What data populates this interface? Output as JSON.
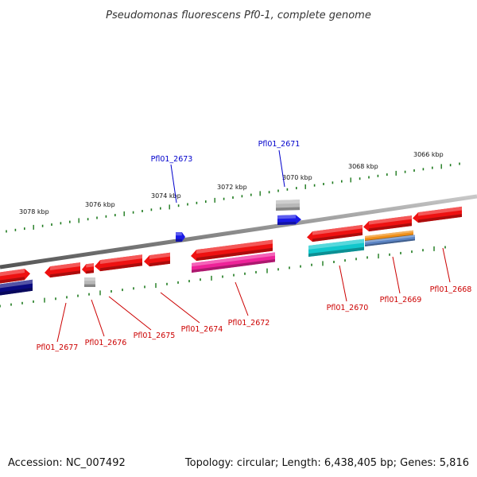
{
  "title": "Pseudomonas fluorescens Pf0-1, complete genome",
  "footer": {
    "accession": "Accession: NC_007492",
    "summary": "Topology: circular; Length: 6,438,405 bp; Genes: 5,816"
  },
  "ruler_labels": [
    "3078 kbp",
    "3076 kbp",
    "3074 kbp",
    "3072 kbp",
    "3070 kbp",
    "3068 kbp",
    "3066 kbp"
  ],
  "colors": {
    "backbone": "#8c8c8c",
    "tick": "#1d7a1d",
    "label_red": "#cc0000",
    "label_blue": "#0000cc",
    "gene_red": "#ee1111",
    "gene_grey": "#b8b8b8",
    "gene_blue": "#1a1ae6",
    "gene_navy": "#0a0a80",
    "gene_magenta": "#ee2299",
    "gene_cyan": "#11c7cc",
    "gene_orange": "#f0901a",
    "gene_steel": "#5b84c4"
  },
  "gene_labels": [
    {
      "text": "Pfl01_2677",
      "color": "red"
    },
    {
      "text": "Pfl01_2676",
      "color": "red"
    },
    {
      "text": "Pfl01_2675",
      "color": "red"
    },
    {
      "text": "Pfl01_2674",
      "color": "red"
    },
    {
      "text": "Pfl01_2672",
      "color": "red"
    },
    {
      "text": "Pfl01_2670",
      "color": "red"
    },
    {
      "text": "Pfl01_2669",
      "color": "red"
    },
    {
      "text": "Pfl01_2668",
      "color": "red"
    },
    {
      "text": "Pfl01_2673",
      "color": "blue"
    },
    {
      "text": "Pfl01_2671",
      "color": "blue"
    }
  ]
}
